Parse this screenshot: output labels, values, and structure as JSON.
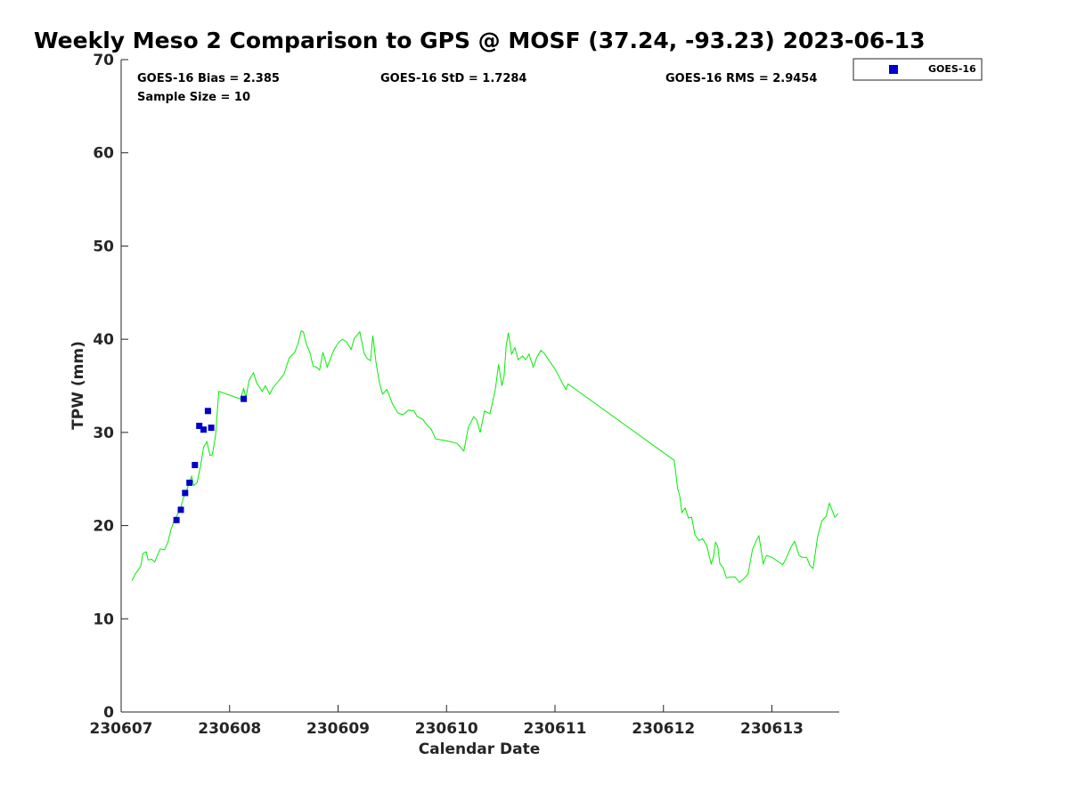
{
  "chart_data": {
    "type": "scatter",
    "title": "Weekly Meso 2 Comparison to GPS @ MOSF (37.24, -93.23) 2023-06-13",
    "xlabel": "Calendar Date",
    "ylabel": "TPW (mm)",
    "x_tick_labels": [
      "230607",
      "230608",
      "230609",
      "230610",
      "230611",
      "230612",
      "230613"
    ],
    "x_tick_values": [
      0,
      1,
      2,
      3,
      4,
      5,
      6
    ],
    "xlim": [
      0,
      6.62
    ],
    "ylim": [
      0,
      70
    ],
    "y_ticks": [
      0,
      10,
      20,
      30,
      40,
      50,
      60,
      70
    ],
    "grid": false,
    "legend_position": "top-right",
    "stats": {
      "bias": "GOES-16 Bias = 2.385",
      "std": "GOES-16 StD = 1.7284",
      "rms": "GOES-16 RMS = 2.9454",
      "sample": "Sample Size = 10"
    },
    "series": [
      {
        "name": "GOES-16",
        "kind": "scatter",
        "marker": "square",
        "color": "#0000cc",
        "points": [
          [
            0.51,
            20.6
          ],
          [
            0.55,
            21.7
          ],
          [
            0.59,
            23.5
          ],
          [
            0.63,
            24.6
          ],
          [
            0.68,
            26.5
          ],
          [
            0.72,
            30.7
          ],
          [
            0.76,
            30.3
          ],
          [
            0.8,
            32.3
          ],
          [
            0.83,
            30.5
          ],
          [
            1.13,
            33.6
          ]
        ]
      },
      {
        "kind": "line",
        "color": "#00ee00",
        "points": [
          [
            0.1,
            14.1
          ],
          [
            0.13,
            14.8
          ],
          [
            0.16,
            15.3
          ],
          [
            0.18,
            15.6
          ],
          [
            0.2,
            17.0
          ],
          [
            0.23,
            17.2
          ],
          [
            0.25,
            16.3
          ],
          [
            0.28,
            16.4
          ],
          [
            0.31,
            16.1
          ],
          [
            0.33,
            16.7
          ],
          [
            0.36,
            17.5
          ],
          [
            0.4,
            17.4
          ],
          [
            0.43,
            18.2
          ],
          [
            0.46,
            19.6
          ],
          [
            0.49,
            20.6
          ],
          [
            0.52,
            21.2
          ],
          [
            0.55,
            22.0
          ],
          [
            0.58,
            23.2
          ],
          [
            0.61,
            24.0
          ],
          [
            0.65,
            25.3
          ],
          [
            0.67,
            24.3
          ],
          [
            0.7,
            24.6
          ],
          [
            0.73,
            26.3
          ],
          [
            0.76,
            28.4
          ],
          [
            0.79,
            29.0
          ],
          [
            0.82,
            27.5
          ],
          [
            0.84,
            27.6
          ],
          [
            0.87,
            29.6
          ],
          [
            0.9,
            34.4
          ],
          [
            1.1,
            33.6
          ],
          [
            1.13,
            34.7
          ],
          [
            1.15,
            33.7
          ],
          [
            1.18,
            35.6
          ],
          [
            1.22,
            36.4
          ],
          [
            1.25,
            35.3
          ],
          [
            1.28,
            34.8
          ],
          [
            1.3,
            34.4
          ],
          [
            1.33,
            35.0
          ],
          [
            1.37,
            34.1
          ],
          [
            1.4,
            34.8
          ],
          [
            1.45,
            35.5
          ],
          [
            1.5,
            36.2
          ],
          [
            1.55,
            38.0
          ],
          [
            1.6,
            38.6
          ],
          [
            1.63,
            39.5
          ],
          [
            1.66,
            40.9
          ],
          [
            1.68,
            40.8
          ],
          [
            1.71,
            39.4
          ],
          [
            1.74,
            38.6
          ],
          [
            1.77,
            37.1
          ],
          [
            1.8,
            37.0
          ],
          [
            1.83,
            36.7
          ],
          [
            1.86,
            38.6
          ],
          [
            1.9,
            37.0
          ],
          [
            1.93,
            37.9
          ],
          [
            1.96,
            38.8
          ],
          [
            2.0,
            39.6
          ],
          [
            2.04,
            40.0
          ],
          [
            2.08,
            39.7
          ],
          [
            2.12,
            38.9
          ],
          [
            2.15,
            40.1
          ],
          [
            2.2,
            40.8
          ],
          [
            2.24,
            38.5
          ],
          [
            2.27,
            37.9
          ],
          [
            2.3,
            37.7
          ],
          [
            2.32,
            40.4
          ],
          [
            2.35,
            37.5
          ],
          [
            2.38,
            35.4
          ],
          [
            2.41,
            34.1
          ],
          [
            2.45,
            34.6
          ],
          [
            2.5,
            33.1
          ],
          [
            2.55,
            32.1
          ],
          [
            2.6,
            31.9
          ],
          [
            2.65,
            32.4
          ],
          [
            2.7,
            32.3
          ],
          [
            2.73,
            31.7
          ],
          [
            2.78,
            31.4
          ],
          [
            2.82,
            30.8
          ],
          [
            2.86,
            30.3
          ],
          [
            2.9,
            29.3
          ],
          [
            3.0,
            29.1
          ],
          [
            3.1,
            28.8
          ],
          [
            3.16,
            28.0
          ],
          [
            3.2,
            30.5
          ],
          [
            3.25,
            31.7
          ],
          [
            3.28,
            31.3
          ],
          [
            3.31,
            30.0
          ],
          [
            3.35,
            32.3
          ],
          [
            3.4,
            32.0
          ],
          [
            3.45,
            34.6
          ],
          [
            3.48,
            37.3
          ],
          [
            3.51,
            35.0
          ],
          [
            3.53,
            36.0
          ],
          [
            3.55,
            39.3
          ],
          [
            3.57,
            40.7
          ],
          [
            3.6,
            38.4
          ],
          [
            3.63,
            39.1
          ],
          [
            3.66,
            37.8
          ],
          [
            3.7,
            38.2
          ],
          [
            3.73,
            37.8
          ],
          [
            3.76,
            38.4
          ],
          [
            3.8,
            37.0
          ],
          [
            3.83,
            38.0
          ],
          [
            3.87,
            38.8
          ],
          [
            3.9,
            38.5
          ],
          [
            4.0,
            36.8
          ],
          [
            4.1,
            34.6
          ],
          [
            4.12,
            35.2
          ],
          [
            5.1,
            27.0
          ],
          [
            5.13,
            24.0
          ],
          [
            5.15,
            23.2
          ],
          [
            5.17,
            21.4
          ],
          [
            5.2,
            21.9
          ],
          [
            5.23,
            20.8
          ],
          [
            5.26,
            20.9
          ],
          [
            5.29,
            19.0
          ],
          [
            5.33,
            18.4
          ],
          [
            5.36,
            18.6
          ],
          [
            5.4,
            17.8
          ],
          [
            5.44,
            15.9
          ],
          [
            5.46,
            16.6
          ],
          [
            5.48,
            18.2
          ],
          [
            5.5,
            17.8
          ],
          [
            5.52,
            15.9
          ],
          [
            5.55,
            15.5
          ],
          [
            5.58,
            14.4
          ],
          [
            5.62,
            14.5
          ],
          [
            5.66,
            14.5
          ],
          [
            5.7,
            13.9
          ],
          [
            5.74,
            14.3
          ],
          [
            5.78,
            14.8
          ],
          [
            5.82,
            17.4
          ],
          [
            5.86,
            18.5
          ],
          [
            5.88,
            18.9
          ],
          [
            5.92,
            15.9
          ],
          [
            5.95,
            16.8
          ],
          [
            6.0,
            16.6
          ],
          [
            6.05,
            16.2
          ],
          [
            6.1,
            15.8
          ],
          [
            6.14,
            16.7
          ],
          [
            6.18,
            17.8
          ],
          [
            6.21,
            18.3
          ],
          [
            6.25,
            16.8
          ],
          [
            6.28,
            16.6
          ],
          [
            6.32,
            16.6
          ],
          [
            6.35,
            15.7
          ],
          [
            6.38,
            15.4
          ],
          [
            6.42,
            18.7
          ],
          [
            6.46,
            20.5
          ],
          [
            6.5,
            21.0
          ],
          [
            6.53,
            22.4
          ],
          [
            6.56,
            21.5
          ],
          [
            6.58,
            20.9
          ],
          [
            6.61,
            21.3
          ]
        ]
      }
    ]
  }
}
